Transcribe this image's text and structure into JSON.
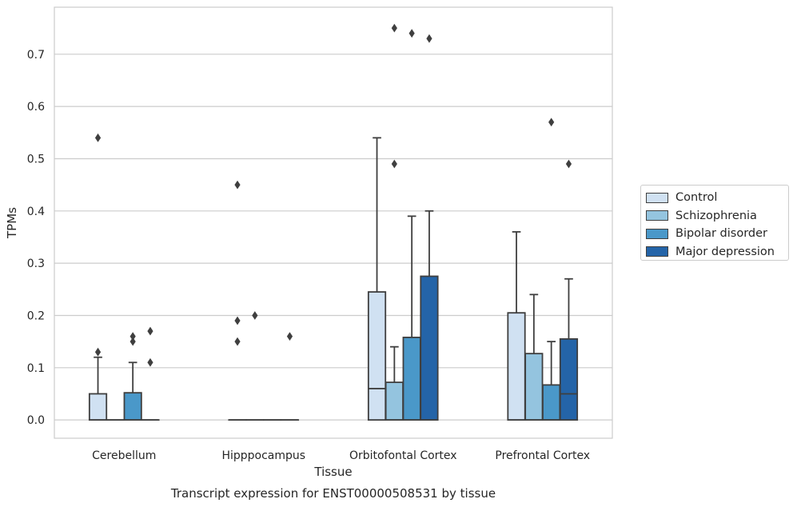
{
  "chart_data": {
    "type": "box",
    "xlabel": "Tissue",
    "ylabel": "TPMs",
    "caption": "Transcript expression for ENST00000508531 by tissue",
    "ylim": [
      -0.035,
      0.79
    ],
    "yticks": [
      "0.0",
      "0.1",
      "0.2",
      "0.3",
      "0.4",
      "0.5",
      "0.6",
      "0.7"
    ],
    "categories": [
      "Cerebellum",
      "Hipppocampus",
      "Orbitofontal Cortex",
      "Prefrontal Cortex"
    ],
    "grid": "horizontal",
    "legend_position": "outside-right",
    "series": [
      {
        "name": "Control",
        "color": "#d0e1f2",
        "boxes": [
          {
            "q1": 0.0,
            "median": 0.0,
            "q3": 0.05,
            "whislo": 0.0,
            "whishi": 0.12,
            "fliers": [
              0.13,
              0.54
            ]
          },
          {
            "q1": 0.0,
            "median": 0.0,
            "q3": 0.0,
            "whislo": 0.0,
            "whishi": 0.0,
            "fliers": [
              0.15,
              0.19,
              0.45
            ]
          },
          {
            "q1": 0.0,
            "median": 0.06,
            "q3": 0.245,
            "whislo": 0.0,
            "whishi": 0.54,
            "fliers": []
          },
          {
            "q1": 0.0,
            "median": 0.0,
            "q3": 0.205,
            "whislo": 0.0,
            "whishi": 0.36,
            "fliers": []
          }
        ]
      },
      {
        "name": "Schizophrenia",
        "color": "#94c4df",
        "boxes": [
          {
            "q1": 0.0,
            "median": 0.0,
            "q3": 0.0,
            "whislo": 0.0,
            "whishi": 0.0,
            "fliers": []
          },
          {
            "q1": 0.0,
            "median": 0.0,
            "q3": 0.0,
            "whislo": 0.0,
            "whishi": 0.0,
            "fliers": [
              0.2
            ]
          },
          {
            "q1": 0.0,
            "median": 0.0,
            "q3": 0.072,
            "whislo": 0.0,
            "whishi": 0.14,
            "fliers": [
              0.49,
              0.75
            ]
          },
          {
            "q1": 0.0,
            "median": 0.0,
            "q3": 0.127,
            "whislo": 0.0,
            "whishi": 0.24,
            "fliers": []
          }
        ]
      },
      {
        "name": "Bipolar disorder",
        "color": "#4a98c9",
        "boxes": [
          {
            "q1": 0.0,
            "median": 0.0,
            "q3": 0.052,
            "whislo": 0.0,
            "whishi": 0.11,
            "fliers": [
              0.15,
              0.16
            ]
          },
          {
            "q1": 0.0,
            "median": 0.0,
            "q3": 0.0,
            "whislo": 0.0,
            "whishi": 0.0,
            "fliers": []
          },
          {
            "q1": 0.0,
            "median": 0.0,
            "q3": 0.158,
            "whislo": 0.0,
            "whishi": 0.39,
            "fliers": [
              0.74
            ]
          },
          {
            "q1": 0.0,
            "median": 0.0,
            "q3": 0.067,
            "whislo": 0.0,
            "whishi": 0.15,
            "fliers": [
              0.57
            ]
          }
        ]
      },
      {
        "name": "Major depression",
        "color": "#2464a8",
        "boxes": [
          {
            "q1": 0.0,
            "median": 0.0,
            "q3": 0.0,
            "whislo": 0.0,
            "whishi": 0.0,
            "fliers": [
              0.11,
              0.17
            ]
          },
          {
            "q1": 0.0,
            "median": 0.0,
            "q3": 0.0,
            "whislo": 0.0,
            "whishi": 0.0,
            "fliers": [
              0.16
            ]
          },
          {
            "q1": 0.0,
            "median": 0.0,
            "q3": 0.275,
            "whislo": 0.0,
            "whishi": 0.4,
            "fliers": [
              0.73
            ]
          },
          {
            "q1": 0.0,
            "median": 0.05,
            "q3": 0.155,
            "whislo": 0.0,
            "whishi": 0.27,
            "fliers": [
              0.49
            ]
          }
        ]
      }
    ]
  }
}
